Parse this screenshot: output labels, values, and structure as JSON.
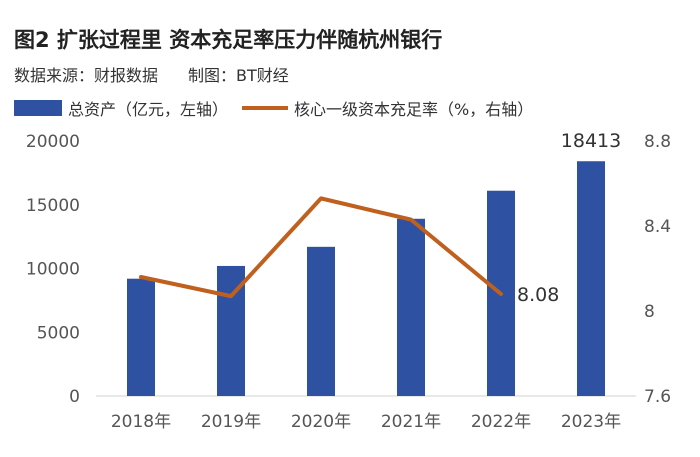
{
  "header": {
    "title": "图2 扩张过程里 资本充足率压力伴随杭州银行",
    "source": "数据来源：财报数据",
    "credit": "制图：BT财经"
  },
  "legend": {
    "bar_label": "总资产（亿元，左轴）",
    "line_label": "核心一级资本充足率（%，右轴）"
  },
  "chart_data": {
    "type": "bar",
    "categories": [
      "2018年",
      "2019年",
      "2020年",
      "2021年",
      "2022年",
      "2023年"
    ],
    "series": [
      {
        "name": "总资产（亿元，左轴）",
        "kind": "bar",
        "axis": "left",
        "color": "#2E51A2",
        "values": [
          9200,
          10200,
          11700,
          13900,
          16100,
          18413
        ]
      },
      {
        "name": "核心一级资本充足率（%，右轴）",
        "kind": "line",
        "axis": "right",
        "color": "#C0601E",
        "values": [
          8.16,
          8.07,
          8.53,
          8.43,
          8.08,
          null
        ]
      }
    ],
    "left_axis": {
      "min": 0,
      "max": 20000,
      "ticks": [
        "0",
        "5000",
        "10000",
        "15000",
        "20000"
      ]
    },
    "right_axis": {
      "min": 7.6,
      "max": 8.8,
      "ticks": [
        "7.6",
        "8",
        "8.4",
        "8.8"
      ]
    },
    "data_labels": [
      {
        "series": 0,
        "index": 5,
        "text": "18413"
      },
      {
        "series": 1,
        "index": 4,
        "text": "8.08"
      }
    ],
    "grid": false
  }
}
